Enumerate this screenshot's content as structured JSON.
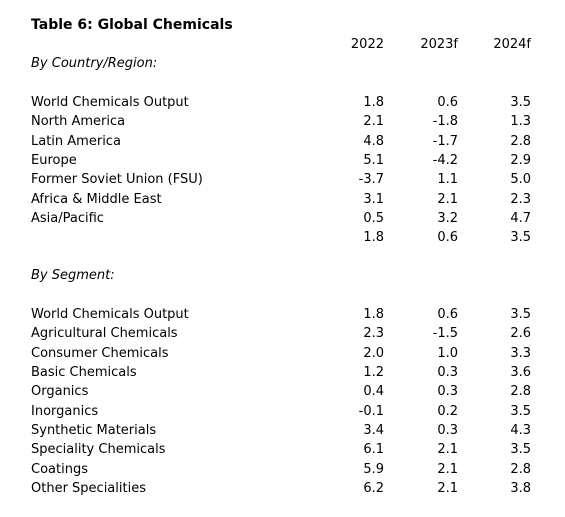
{
  "title": "Table 6: Global Chemicals",
  "columns": [
    "2022",
    "2023f",
    "2024f"
  ],
  "sections": [
    {
      "heading": "By Country/Region:",
      "rows": [
        {
          "label": "World Chemicals Output",
          "values": [
            "1.8",
            "0.6",
            "3.5"
          ]
        },
        {
          "label": "North America",
          "values": [
            "2.1",
            "-1.8",
            "1.3"
          ]
        },
        {
          "label": "Latin America",
          "values": [
            "4.8",
            "-1.7",
            "2.8"
          ]
        },
        {
          "label": "Europe",
          "values": [
            "5.1",
            "-4.2",
            "2.9"
          ]
        },
        {
          "label": "Former Soviet Union (FSU)",
          "values": [
            "-3.7",
            "1.1",
            "5.0"
          ]
        },
        {
          "label": "Africa & Middle East",
          "values": [
            "3.1",
            "2.1",
            "2.3"
          ]
        },
        {
          "label": "Asia/Pacific",
          "values": [
            "0.5",
            "3.2",
            "4.7"
          ]
        },
        {
          "label": null,
          "values": [
            "1.8",
            "0.6",
            "3.5"
          ]
        }
      ]
    },
    {
      "heading": "By Segment:",
      "rows": [
        {
          "label": "World Chemicals Output",
          "values": [
            "1.8",
            "0.6",
            "3.5"
          ]
        },
        {
          "label": "Agricultural Chemicals",
          "values": [
            "2.3",
            "-1.5",
            "2.6"
          ]
        },
        {
          "label": "Consumer Chemicals",
          "values": [
            "2.0",
            "1.0",
            "3.3"
          ]
        },
        {
          "label": "Basic Chemicals",
          "values": [
            "1.2",
            "0.3",
            "3.6"
          ]
        },
        {
          "label": "Organics",
          "values": [
            "0.4",
            "0.3",
            "2.8"
          ]
        },
        {
          "label": "Inorganics",
          "values": [
            "-0.1",
            "0.2",
            "3.5"
          ]
        },
        {
          "label": "Synthetic Materials",
          "values": [
            "3.4",
            "0.3",
            "4.3"
          ]
        },
        {
          "label": "Speciality Chemicals",
          "values": [
            "6.1",
            "2.1",
            "3.5"
          ]
        },
        {
          "label": "Coatings",
          "values": [
            "5.9",
            "2.1",
            "2.8"
          ]
        },
        {
          "label": "Other Specialities",
          "values": [
            "6.2",
            "2.1",
            "3.8"
          ]
        }
      ]
    }
  ]
}
